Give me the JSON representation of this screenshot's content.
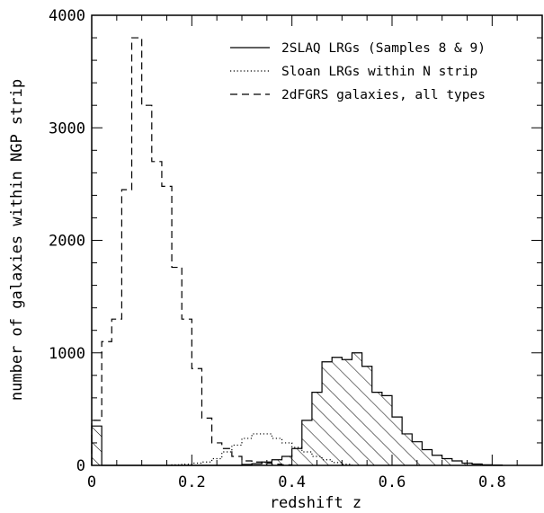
{
  "chart_data": {
    "type": "histogram",
    "xlabel": "redshift z",
    "ylabel": "number of galaxies within NGP strip",
    "xlim": [
      0,
      0.9
    ],
    "ylim": [
      0,
      4000
    ],
    "xticks": [
      0,
      0.2,
      0.4,
      0.6,
      0.8
    ],
    "yticks": [
      0,
      1000,
      2000,
      3000,
      4000
    ],
    "xtick_labels": [
      "0",
      "0.2",
      "0.4",
      "0.6",
      "0.8"
    ],
    "ytick_labels": [
      "0",
      "1000",
      "2000",
      "3000",
      "4000"
    ],
    "bin_width": 0.02,
    "legend_position": "top-right",
    "series": [
      {
        "name": "2SLAQ LRGs (Samples 8 & 9)",
        "style": "solid",
        "hatched": true,
        "bins": [
          [
            0.0,
            350
          ],
          [
            0.02,
            0
          ],
          [
            0.04,
            0
          ],
          [
            0.06,
            0
          ],
          [
            0.08,
            0
          ],
          [
            0.1,
            0
          ],
          [
            0.12,
            0
          ],
          [
            0.14,
            0
          ],
          [
            0.16,
            0
          ],
          [
            0.18,
            0
          ],
          [
            0.2,
            0
          ],
          [
            0.22,
            0
          ],
          [
            0.24,
            0
          ],
          [
            0.26,
            0
          ],
          [
            0.28,
            0
          ],
          [
            0.3,
            8
          ],
          [
            0.32,
            15
          ],
          [
            0.34,
            30
          ],
          [
            0.36,
            50
          ],
          [
            0.38,
            80
          ],
          [
            0.4,
            150
          ],
          [
            0.42,
            400
          ],
          [
            0.44,
            650
          ],
          [
            0.46,
            920
          ],
          [
            0.48,
            960
          ],
          [
            0.5,
            940
          ],
          [
            0.52,
            1000
          ],
          [
            0.54,
            880
          ],
          [
            0.56,
            650
          ],
          [
            0.58,
            620
          ],
          [
            0.6,
            430
          ],
          [
            0.62,
            280
          ],
          [
            0.64,
            210
          ],
          [
            0.66,
            140
          ],
          [
            0.68,
            90
          ],
          [
            0.7,
            60
          ],
          [
            0.72,
            40
          ],
          [
            0.74,
            20
          ],
          [
            0.76,
            12
          ],
          [
            0.78,
            5
          ],
          [
            0.8,
            3
          ]
        ]
      },
      {
        "name": "Sloan LRGs within N strip",
        "style": "dotted",
        "hatched": false,
        "bins": [
          [
            0.16,
            5
          ],
          [
            0.18,
            10
          ],
          [
            0.2,
            20
          ],
          [
            0.22,
            30
          ],
          [
            0.24,
            60
          ],
          [
            0.26,
            120
          ],
          [
            0.28,
            180
          ],
          [
            0.3,
            240
          ],
          [
            0.32,
            280
          ],
          [
            0.34,
            280
          ],
          [
            0.36,
            240
          ],
          [
            0.38,
            200
          ],
          [
            0.4,
            160
          ],
          [
            0.42,
            120
          ],
          [
            0.44,
            80
          ],
          [
            0.46,
            50
          ],
          [
            0.48,
            25
          ],
          [
            0.5,
            10
          ]
        ]
      },
      {
        "name": "2dFGRS galaxies, all types",
        "style": "dashed",
        "hatched": false,
        "bins": [
          [
            0.0,
            400
          ],
          [
            0.02,
            1100
          ],
          [
            0.04,
            1300
          ],
          [
            0.06,
            2450
          ],
          [
            0.08,
            3800
          ],
          [
            0.1,
            3200
          ],
          [
            0.12,
            2700
          ],
          [
            0.14,
            2480
          ],
          [
            0.16,
            1760
          ],
          [
            0.18,
            1300
          ],
          [
            0.2,
            860
          ],
          [
            0.22,
            420
          ],
          [
            0.24,
            200
          ],
          [
            0.26,
            150
          ],
          [
            0.28,
            80
          ],
          [
            0.3,
            40
          ],
          [
            0.32,
            30
          ],
          [
            0.34,
            20
          ],
          [
            0.36,
            10
          ],
          [
            0.38,
            5
          ]
        ]
      }
    ]
  }
}
